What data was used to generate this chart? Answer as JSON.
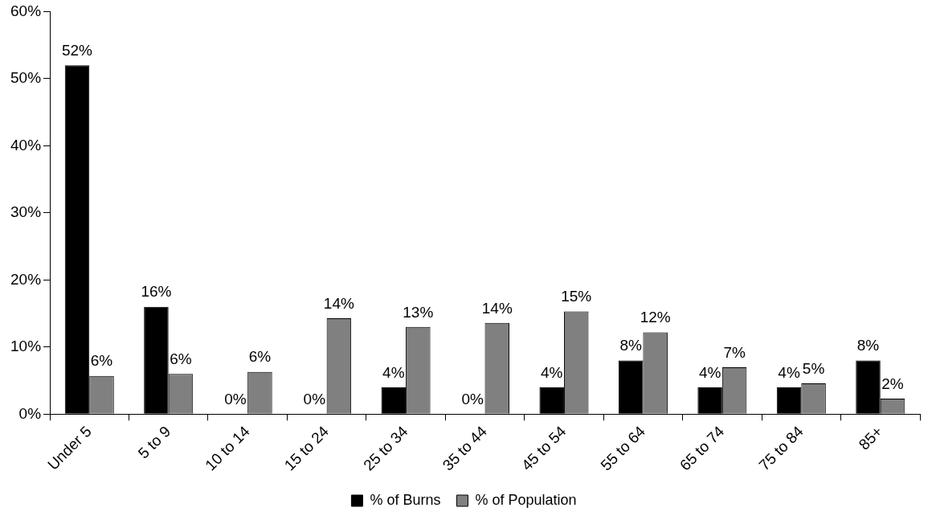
{
  "chart_data": {
    "type": "bar",
    "categories": [
      "Under 5",
      "5 to 9",
      "10 to 14",
      "15 to 24",
      "25 to 34",
      "35 to 44",
      "45 to 54",
      "55 to 64",
      "65 to 74",
      "75 to 84",
      "85+"
    ],
    "series": [
      {
        "name": "% of Burns",
        "color": "#000000",
        "values": [
          52,
          16,
          0,
          0,
          4,
          0,
          4,
          8,
          4,
          4,
          8
        ],
        "value_labels": [
          "52%",
          "16%",
          "0%",
          "0%",
          "4%",
          "0%",
          "4%",
          "8%",
          "4%",
          "4%",
          "8%"
        ]
      },
      {
        "name": "% of Population",
        "color": "#808080",
        "values": [
          5.7,
          6.0,
          6.3,
          14.3,
          13.0,
          13.6,
          15.3,
          12.2,
          7.0,
          4.6,
          2.3
        ],
        "value_labels": [
          "6%",
          "6%",
          "6%",
          "14%",
          "13%",
          "14%",
          "15%",
          "12%",
          "7%",
          "5%",
          "2%"
        ]
      }
    ],
    "ylim": [
      0,
      60
    ],
    "yticks": [
      {
        "value": 0,
        "label": "0%"
      },
      {
        "value": 10,
        "label": "10%"
      },
      {
        "value": 20,
        "label": "20%"
      },
      {
        "value": 30,
        "label": "30%"
      },
      {
        "value": 40,
        "label": "40%"
      },
      {
        "value": 50,
        "label": "50%"
      },
      {
        "value": 60,
        "label": "60%"
      }
    ],
    "grid": false,
    "legend": "bottom"
  }
}
